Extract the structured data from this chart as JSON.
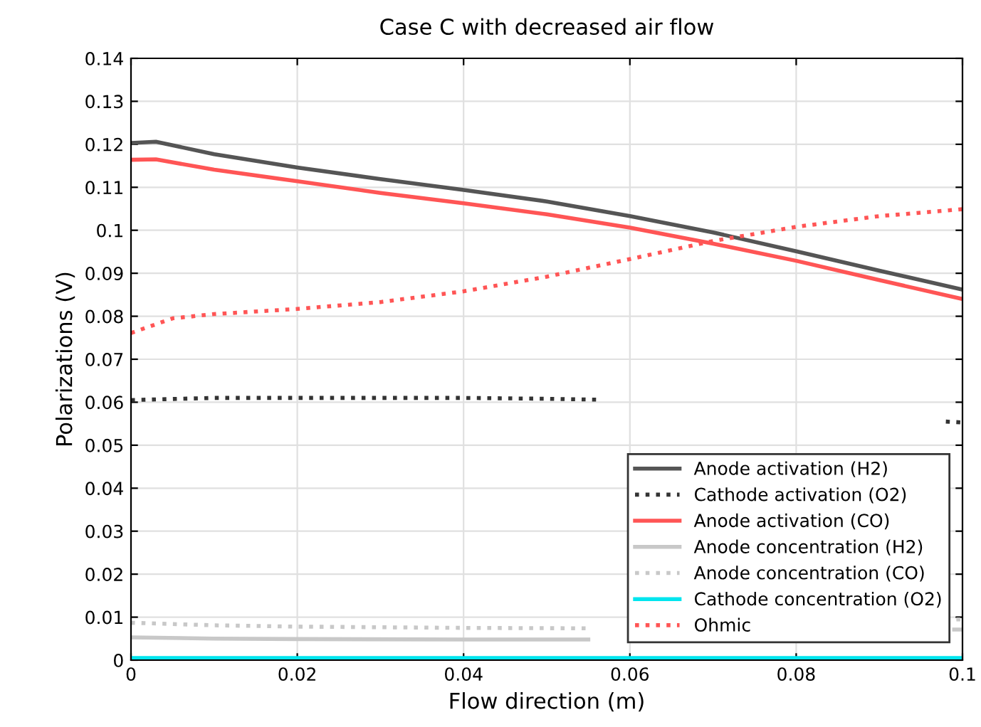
{
  "chart_data": {
    "type": "line",
    "title": "Case C with decreased air flow",
    "xlabel": "Flow direction (m)",
    "ylabel": "Polarizations (V)",
    "xlim": [
      0,
      0.1
    ],
    "xticks": [
      0,
      0.02,
      0.04,
      0.06,
      0.08,
      0.1
    ],
    "ylim": [
      0,
      0.14
    ],
    "yticks": [
      0,
      0.01,
      0.02,
      0.03,
      0.04,
      0.05,
      0.06,
      0.07,
      0.08,
      0.09,
      0.1,
      0.11,
      0.12,
      0.13,
      0.14
    ],
    "grid": true,
    "legend": "bottom right",
    "series": [
      {
        "name": "Anode activation (H2)",
        "color": "#555555",
        "line_style": "solid",
        "x": [
          0,
          0.003,
          0.01,
          0.02,
          0.03,
          0.04,
          0.05,
          0.06,
          0.07,
          0.08,
          0.09,
          0.1
        ],
        "values": [
          0.1203,
          0.1206,
          0.1177,
          0.1146,
          0.1119,
          0.1094,
          0.1067,
          0.1033,
          0.0995,
          0.0951,
          0.0906,
          0.0862
        ]
      },
      {
        "name": "Cathode activation (O2)",
        "color": "#333333",
        "line_style": "dotted",
        "x": [
          0,
          0.01,
          0.02,
          0.03,
          0.04,
          0.05,
          0.056,
          0.07,
          0.098,
          0.1
        ],
        "values": [
          0.0605,
          0.061,
          0.061,
          0.061,
          0.061,
          0.0608,
          0.0606,
          null,
          0.0555,
          0.0553
        ]
      },
      {
        "name": "Anode activation (CO)",
        "color": "#ff5555",
        "line_style": "solid",
        "x": [
          0,
          0.003,
          0.01,
          0.02,
          0.03,
          0.04,
          0.05,
          0.06,
          0.07,
          0.08,
          0.09,
          0.1
        ],
        "values": [
          0.1164,
          0.1165,
          0.1141,
          0.1114,
          0.1087,
          0.1063,
          0.1037,
          0.1006,
          0.0969,
          0.0929,
          0.0884,
          0.084
        ]
      },
      {
        "name": "Anode concentration (H2)",
        "color": "#c8c8c8",
        "line_style": "solid",
        "x": [
          0,
          0.01,
          0.02,
          0.04,
          0.055,
          0.07,
          0.099,
          0.1
        ],
        "values": [
          0.0053,
          0.005,
          0.0049,
          0.0048,
          0.0048,
          null,
          0.0071,
          0.0071
        ]
      },
      {
        "name": "Anode concentration (CO)",
        "color": "#c8c8c8",
        "line_style": "dotted",
        "x": [
          0,
          0.01,
          0.02,
          0.04,
          0.055,
          0.07,
          0.098,
          0.1
        ],
        "values": [
          0.0087,
          0.0081,
          0.0078,
          0.0075,
          0.0074,
          null,
          0.0094,
          0.0095
        ]
      },
      {
        "name": "Cathode concentration (O2)",
        "color": "#00e5ee",
        "line_style": "solid",
        "x": [
          0,
          0.05,
          0.1
        ],
        "values": [
          0.0005,
          0.0005,
          0.0005
        ]
      },
      {
        "name": "Ohmic",
        "color": "#ff5555",
        "line_style": "dotted",
        "x": [
          0,
          0.005,
          0.01,
          0.02,
          0.03,
          0.04,
          0.05,
          0.06,
          0.07,
          0.08,
          0.09,
          0.1
        ],
        "values": [
          0.0761,
          0.0795,
          0.0805,
          0.0817,
          0.0833,
          0.0858,
          0.0892,
          0.0933,
          0.0975,
          0.1008,
          0.1033,
          0.1049
        ]
      }
    ]
  }
}
